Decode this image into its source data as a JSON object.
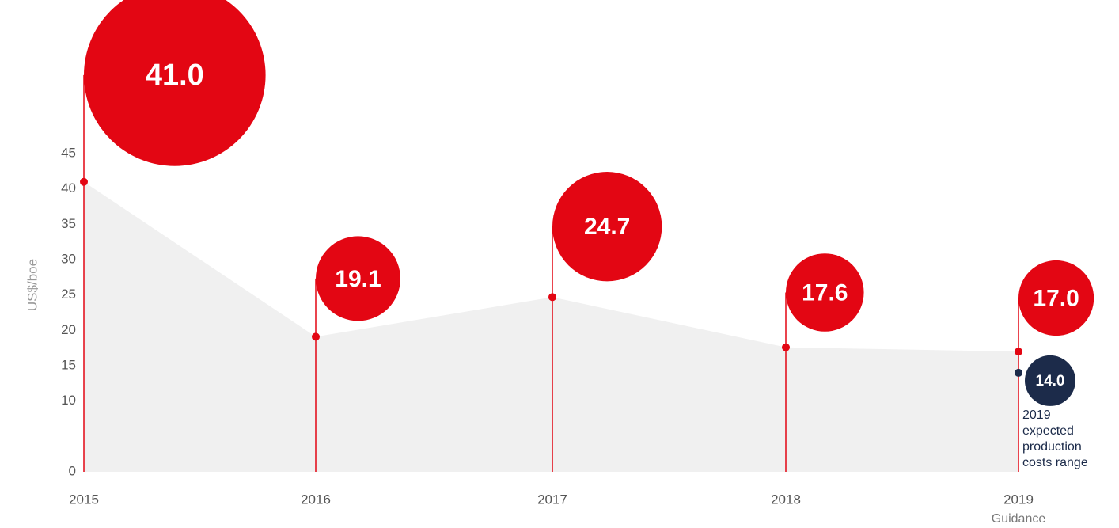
{
  "chart_data": {
    "type": "lollipop-bubble",
    "y_axis_label": "US$/boe",
    "categories": [
      "2015",
      "2016",
      "2017",
      "2018",
      "2019"
    ],
    "category_sublabels": [
      null,
      null,
      null,
      null,
      "Guidance"
    ],
    "series": [
      {
        "name": "Production costs",
        "color": "#e30613",
        "values": [
          41.0,
          19.1,
          24.7,
          17.6,
          17.0
        ],
        "value_labels": [
          "41.0",
          "19.1",
          "24.7",
          "17.6",
          "17.0"
        ]
      }
    ],
    "range_low": {
      "category": "2019",
      "value": 14.0,
      "value_label": "14.0",
      "color": "#1c2b4a",
      "note": "2019 expected production costs range"
    },
    "area_color": "#f0f0f0",
    "ylim": [
      0,
      45
    ],
    "yticks": [
      0,
      10,
      15,
      20,
      25,
      30,
      35,
      40,
      45
    ]
  }
}
